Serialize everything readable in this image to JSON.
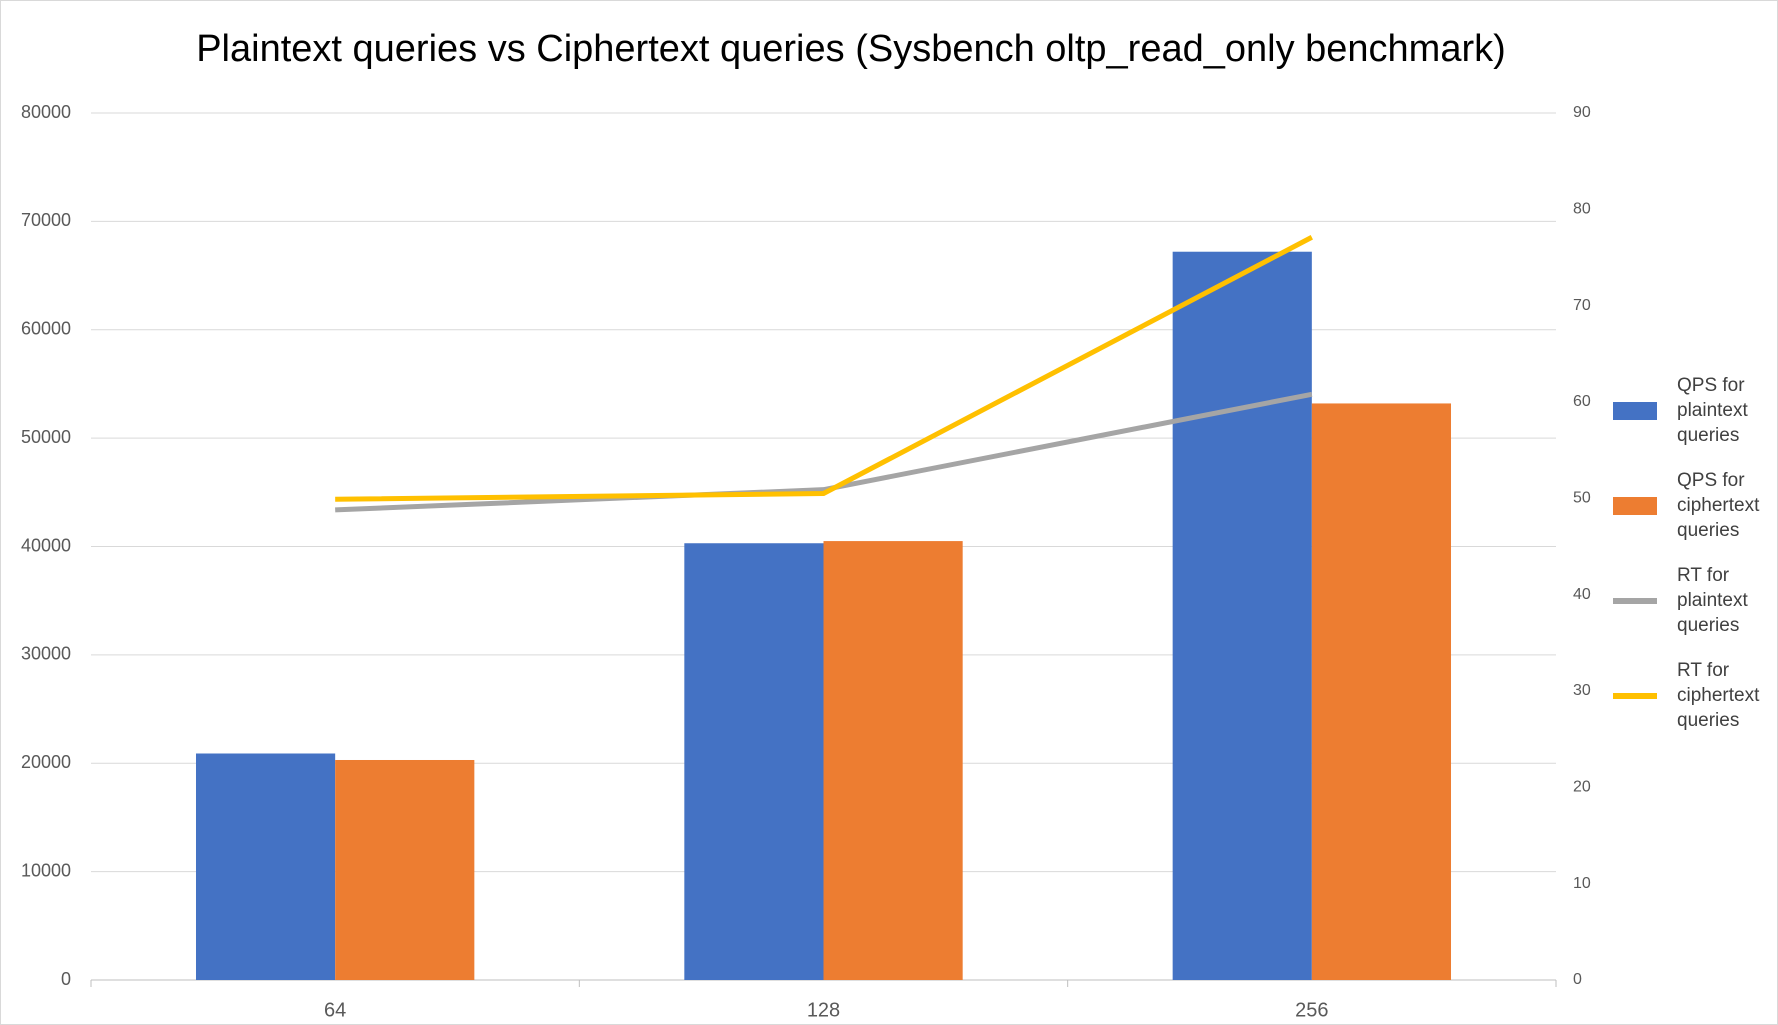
{
  "chart_data": {
    "type": "bar",
    "title": "Plaintext queries vs Ciphertext queries (Sysbench oltp_read_only benchmark)",
    "categories": [
      "64",
      "128",
      "256"
    ],
    "series": [
      {
        "name": "QPS for plaintext queries",
        "type": "bar",
        "color": "#4472c4",
        "values": [
          20900,
          40300,
          67200
        ]
      },
      {
        "name": "QPS for ciphertext queries",
        "type": "bar",
        "color": "#ed7d31",
        "values": [
          20300,
          40500,
          53200
        ]
      },
      {
        "name": "RT for plaintext queries",
        "type": "line",
        "axis": "y2",
        "color": "#a5a5a5",
        "values": [
          48.8,
          50.9,
          60.8
        ]
      },
      {
        "name": "RT for ciphertext queries",
        "type": "line",
        "axis": "y2",
        "color": "#ffc000",
        "values": [
          49.9,
          50.5,
          77.1
        ]
      }
    ],
    "ylim": [
      0,
      80000
    ],
    "yticks": [
      0,
      10000,
      20000,
      30000,
      40000,
      50000,
      60000,
      70000,
      80000
    ],
    "y2lim": [
      0,
      90
    ],
    "y2ticks": [
      0,
      10,
      20,
      30,
      40,
      50,
      60,
      70,
      80,
      90
    ],
    "grid": true,
    "legend": "right"
  }
}
